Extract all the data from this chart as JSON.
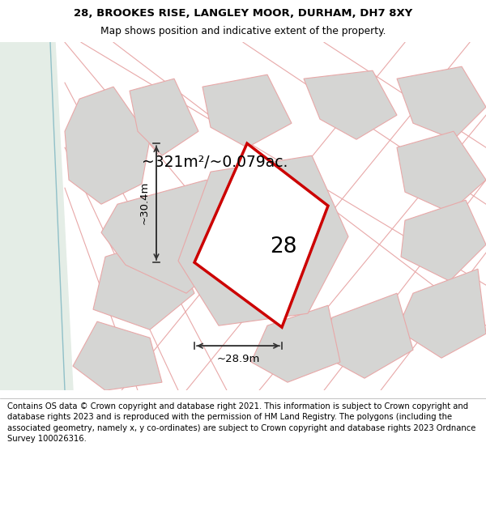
{
  "title_line1": "28, BROOKES RISE, LANGLEY MOOR, DURHAM, DH7 8XY",
  "title_line2": "Map shows position and indicative extent of the property.",
  "footer_text": "Contains OS data © Crown copyright and database right 2021. This information is subject to Crown copyright and database rights 2023 and is reproduced with the permission of HM Land Registry. The polygons (including the associated geometry, namely x, y co-ordinates) are subject to Crown copyright and database rights 2023 Ordnance Survey 100026316.",
  "area_label": "~321m²/~0.079ac.",
  "number_label": "28",
  "dim_horiz": "~28.9m",
  "dim_vert": "~30.4m",
  "bg_map_color": "#f2f2f0",
  "bg_left_color": "#e4ede6",
  "plot_fill_color": "#ffffff",
  "plot_edge_color": "#cc0000",
  "neighbor_fill": "#d5d5d3",
  "neighbor_edge_pink": "#e8a8a8",
  "road_edge_pink": "#e8a8a8",
  "blue_line_color": "#90c0c8",
  "title_fontsize": 9.5,
  "footer_fontsize": 7.2
}
